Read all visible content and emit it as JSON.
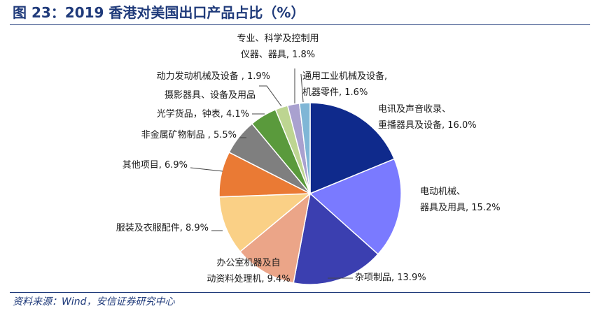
{
  "page": {
    "title": "图 23：2019 香港对美国出口产品占比（%）",
    "source": "资料来源：Wind，安信证券研究中心"
  },
  "chart_data": {
    "type": "pie",
    "title": "",
    "unit": "%",
    "slices": [
      {
        "label_lines": [
          "电讯及声音收录、",
          "重播器具及设备, 16.0%"
        ],
        "value": 16.0,
        "color": "#0f2a8c"
      },
      {
        "label_lines": [
          "电动机械、",
          "器具及用具, 15.2%"
        ],
        "value": 15.2,
        "color": "#7a7aff"
      },
      {
        "label_lines": [
          "杂项制品, 13.9%"
        ],
        "value": 13.9,
        "color": "#3b3fb0"
      },
      {
        "label_lines": [
          "办公室机器及自",
          "动资料处理机, 9.4%"
        ],
        "value": 9.4,
        "color": "#eba588"
      },
      {
        "label_lines": [
          "服装及衣服配件, 8.9%"
        ],
        "value": 8.9,
        "color": "#fad086"
      },
      {
        "label_lines": [
          "其他项目, 6.9%"
        ],
        "value": 6.9,
        "color": "#ea7a34"
      },
      {
        "label_lines": [
          "非金属矿物制品 , 5.5%"
        ],
        "value": 5.5,
        "color": "#7f7f7f"
      },
      {
        "label_lines": [
          "光学货品，钟表, 4.1%"
        ],
        "value": 4.1,
        "color": "#5a9a3c"
      },
      {
        "label_lines": [
          "摄影器具、设备及用品"
        ],
        "value": 0,
        "color": "#5a9a3c"
      },
      {
        "label_lines": [
          "动力发动机械及设备 , 1.9%"
        ],
        "value": 1.9,
        "color": "#bdd591"
      },
      {
        "label_lines": [
          "专业、科学及控制用",
          "仪器、器具, 1.8%"
        ],
        "value": 1.8,
        "color": "#a9a1cf"
      },
      {
        "label_lines": [
          "通用工业机械及设备,",
          "机器零件, 1.6%"
        ],
        "value": 1.6,
        "color": "#7fb6d6"
      }
    ],
    "legend": "none"
  }
}
